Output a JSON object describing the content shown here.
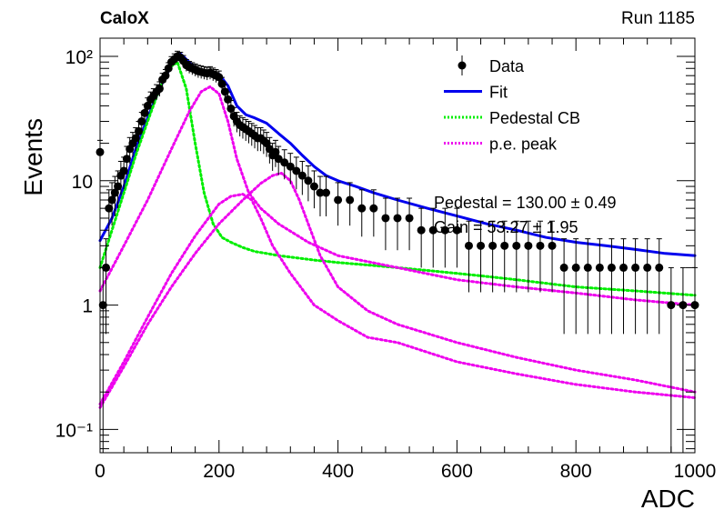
{
  "header": {
    "experiment": "CaloX",
    "run": "Run 1185"
  },
  "chart_data": {
    "type": "scatter",
    "xlabel": "ADC",
    "ylabel": "Events",
    "xlim": [
      0,
      1000
    ],
    "ylim": [
      0.065,
      140
    ],
    "yscale": "log",
    "x_ticks": [
      "0",
      "200",
      "400",
      "600",
      "800",
      "1000"
    ],
    "y_ticks": [
      {
        "value": 0.1,
        "label": "10⁻¹"
      },
      {
        "value": 1,
        "label": "1"
      },
      {
        "value": 10,
        "label": "10"
      },
      {
        "value": 100,
        "label": "10²"
      }
    ],
    "legend_position": "top-right",
    "legend": [
      {
        "label": "Data",
        "style": "marker",
        "color": "#000000"
      },
      {
        "label": "Fit",
        "style": "solid",
        "color": "#0000ee"
      },
      {
        "label": "Pedestal CB",
        "style": "dotted",
        "color": "#00ee00"
      },
      {
        "label": "p.e. peak",
        "style": "dotted",
        "color": "#ee00ee"
      }
    ],
    "fit_results": [
      "Pedestal = 130.00 ± 0.49",
      "Gain = 53.27 ± 1.95"
    ],
    "data": {
      "x": [
        0,
        5,
        10,
        15,
        20,
        25,
        30,
        35,
        40,
        45,
        50,
        55,
        60,
        65,
        70,
        75,
        80,
        85,
        90,
        95,
        100,
        105,
        110,
        115,
        120,
        125,
        130,
        135,
        140,
        145,
        150,
        155,
        160,
        165,
        170,
        175,
        180,
        185,
        190,
        195,
        200,
        205,
        210,
        215,
        220,
        225,
        230,
        235,
        240,
        245,
        250,
        255,
        260,
        265,
        270,
        275,
        280,
        285,
        290,
        295,
        300,
        310,
        320,
        330,
        340,
        350,
        360,
        370,
        380,
        400,
        420,
        440,
        460,
        480,
        500,
        520,
        540,
        560,
        580,
        600,
        620,
        640,
        660,
        680,
        700,
        720,
        740,
        760,
        780,
        800,
        820,
        840,
        860,
        880,
        900,
        920,
        940,
        960,
        980,
        1000
      ],
      "y": [
        17,
        1,
        2,
        6,
        7,
        8,
        9,
        11,
        12,
        15,
        18,
        20,
        22,
        25,
        30,
        35,
        40,
        45,
        48,
        52,
        55,
        65,
        70,
        80,
        90,
        95,
        100,
        98,
        92,
        85,
        82,
        80,
        78,
        76,
        75,
        74,
        73,
        74,
        72,
        70,
        68,
        60,
        52,
        45,
        38,
        33,
        30,
        28,
        27,
        26,
        25,
        24,
        23,
        22,
        22,
        21,
        20,
        18,
        16,
        17,
        15,
        14,
        13,
        12,
        11,
        10,
        9,
        8,
        8,
        7,
        7,
        6,
        6,
        5,
        5,
        5,
        4,
        4,
        4,
        4,
        3,
        3,
        3,
        3,
        3,
        3,
        3,
        3,
        2,
        2,
        2,
        2,
        2,
        2,
        2,
        2,
        2,
        1,
        1,
        1
      ]
    },
    "series": [
      {
        "name": "Fit",
        "x": [
          0,
          20,
          40,
          60,
          80,
          100,
          120,
          135,
          150,
          165,
          180,
          200,
          215,
          230,
          245,
          260,
          280,
          300,
          320,
          340,
          360,
          380,
          400,
          430,
          460,
          500,
          550,
          600,
          650,
          700,
          750,
          800,
          850,
          900,
          950,
          1000
        ],
        "y": [
          3.3,
          5,
          9,
          18,
          32,
          55,
          85,
          105,
          90,
          77,
          75,
          72,
          58,
          40,
          34,
          32,
          29,
          24,
          20,
          16,
          13,
          11,
          10,
          9,
          8,
          7,
          6,
          5.2,
          4.5,
          4,
          3.5,
          3.2,
          3,
          2.8,
          2.6,
          2.5
        ]
      },
      {
        "name": "Pedestal CB",
        "x": [
          0,
          20,
          40,
          60,
          80,
          100,
          115,
          130,
          145,
          160,
          175,
          190,
          205,
          220,
          240,
          260,
          280,
          300,
          330,
          360,
          400,
          450,
          500,
          550,
          600,
          650,
          700,
          800,
          900,
          1000
        ],
        "y": [
          2,
          4,
          8,
          16,
          30,
          55,
          80,
          90,
          55,
          20,
          8,
          4.5,
          3.5,
          3.2,
          2.9,
          2.7,
          2.6,
          2.5,
          2.4,
          2.3,
          2.2,
          2.1,
          2,
          1.9,
          1.8,
          1.7,
          1.6,
          1.4,
          1.3,
          1.2
        ]
      },
      {
        "name": "p.e. peak",
        "x": [
          0,
          40,
          80,
          120,
          150,
          170,
          185,
          200,
          215,
          230,
          250,
          270,
          300,
          350,
          400,
          500,
          600,
          700,
          800,
          900,
          1000
        ],
        "y": [
          1.3,
          3,
          7,
          18,
          36,
          52,
          57,
          50,
          30,
          15,
          8,
          6,
          4.5,
          3.2,
          2.5,
          2,
          1.6,
          1.4,
          1.25,
          1.1,
          1
        ]
      },
      {
        "name": "p.e. peak",
        "x": [
          0,
          40,
          80,
          120,
          160,
          200,
          220,
          240,
          255,
          270,
          290,
          320,
          360,
          400,
          450,
          500,
          600,
          700,
          800,
          900,
          1000
        ],
        "y": [
          0.16,
          0.35,
          0.8,
          1.8,
          3.6,
          6.5,
          7.5,
          7.8,
          7,
          5,
          3,
          1.8,
          1,
          0.75,
          0.55,
          0.5,
          0.35,
          0.28,
          0.23,
          0.2,
          0.18
        ]
      },
      {
        "name": "p.e. peak",
        "x": [
          0,
          40,
          80,
          120,
          160,
          200,
          240,
          270,
          290,
          305,
          320,
          335,
          350,
          370,
          400,
          450,
          500,
          600,
          700,
          800,
          900,
          1000
        ],
        "y": [
          0.15,
          0.32,
          0.7,
          1.4,
          2.6,
          4.5,
          7,
          9.5,
          11,
          11.5,
          10,
          7,
          4.5,
          2.5,
          1.4,
          0.9,
          0.7,
          0.5,
          0.38,
          0.3,
          0.25,
          0.2
        ]
      }
    ]
  }
}
